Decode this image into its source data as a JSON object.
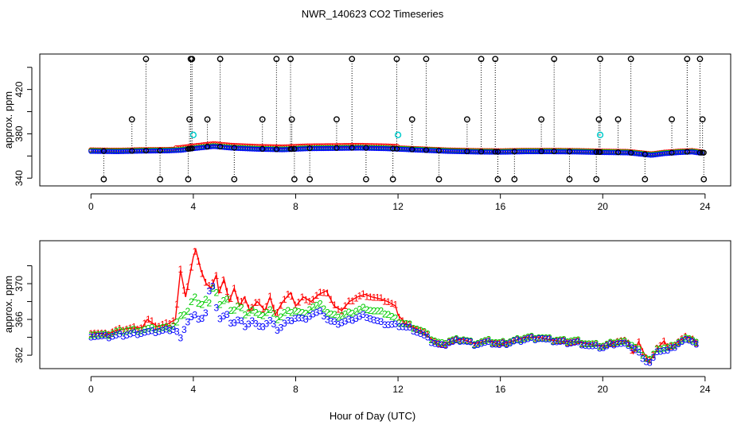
{
  "title": "NWR_140623  CO2 Timeseries",
  "xlabel": "Hour of Day (UTC)",
  "colors": {
    "series1": "#ff0000",
    "series2": "#00cc00",
    "series3": "#0000ff",
    "flag": "#000000",
    "cyan": "#00cccc"
  },
  "chart_data": [
    {
      "type": "scatter",
      "ylabel": "approx. ppm",
      "xlim": [
        -2,
        25
      ],
      "ylim": [
        333,
        452
      ],
      "xticks": [
        "0",
        "4",
        "8",
        "12",
        "16",
        "20",
        "24"
      ],
      "yticks": [
        "340",
        "380",
        "420"
      ],
      "baseline": [
        [
          0.0,
          364.6
        ],
        [
          1.0,
          364.3
        ],
        [
          2.0,
          364.8
        ],
        [
          3.0,
          365.0
        ],
        [
          3.5,
          365.5
        ],
        [
          4.0,
          367.0
        ],
        [
          4.8,
          369.0
        ],
        [
          5.5,
          367.5
        ],
        [
          6.5,
          366.5
        ],
        [
          7.5,
          366.0
        ],
        [
          8.5,
          367.0
        ],
        [
          9.5,
          367.2
        ],
        [
          10.5,
          367.5
        ],
        [
          11.5,
          367.0
        ],
        [
          12.0,
          366.5
        ],
        [
          13.0,
          365.5
        ],
        [
          14.0,
          364.5
        ],
        [
          15.0,
          364.0
        ],
        [
          16.0,
          363.8
        ],
        [
          17.0,
          364.2
        ],
        [
          18.0,
          364.2
        ],
        [
          19.0,
          364.0
        ],
        [
          20.0,
          363.5
        ],
        [
          21.0,
          363.2
        ],
        [
          21.5,
          362.0
        ],
        [
          21.9,
          361.0
        ],
        [
          22.4,
          362.5
        ],
        [
          23.0,
          363.5
        ],
        [
          23.5,
          364.0
        ],
        [
          23.8,
          363.0
        ]
      ],
      "flag_high": [
        2.15,
        3.9,
        3.95,
        5.05,
        7.25,
        7.8,
        10.2,
        11.95,
        13.1,
        15.25,
        15.8,
        18.1,
        19.9,
        21.1,
        23.3,
        23.8
      ],
      "flag_mid": [
        1.6,
        3.85,
        4.55,
        6.7,
        7.85,
        9.6,
        12.55,
        14.7,
        17.6,
        19.85,
        20.6,
        22.7,
        23.9
      ],
      "flag_low": [
        0.5,
        2.7,
        3.8,
        5.6,
        7.95,
        8.55,
        10.75,
        11.8,
        13.6,
        15.9,
        16.55,
        18.7,
        19.75,
        21.65,
        23.95
      ],
      "cyan_points": [
        [
          4.0,
          379
        ],
        [
          12.0,
          379
        ],
        [
          19.9,
          379
        ]
      ]
    },
    {
      "type": "line",
      "ylabel": "approx. ppm",
      "xlim": [
        -2,
        25
      ],
      "ylim": [
        360.5,
        374.8
      ],
      "xticks": [
        "0",
        "4",
        "8",
        "12",
        "16",
        "20",
        "24"
      ],
      "yticks": [
        "362",
        "366",
        "370"
      ],
      "markers": [
        "1",
        "2",
        "3"
      ],
      "series": [
        {
          "name": "1",
          "points": [
            [
              0.0,
              364.6
            ],
            [
              0.6,
              364.3
            ],
            [
              1.0,
              364.8
            ],
            [
              1.5,
              365.0
            ],
            [
              2.0,
              365.1
            ],
            [
              2.2,
              366.0
            ],
            [
              2.6,
              365.2
            ],
            [
              3.0,
              365.5
            ],
            [
              3.3,
              366.0
            ],
            [
              3.5,
              371.5
            ],
            [
              3.7,
              368.5
            ],
            [
              4.0,
              373.0
            ],
            [
              4.1,
              373.8
            ],
            [
              4.3,
              371.5
            ],
            [
              4.5,
              370.0
            ],
            [
              4.7,
              369.5
            ],
            [
              4.9,
              371.0
            ],
            [
              5.0,
              369.0
            ],
            [
              5.2,
              370.5
            ],
            [
              5.4,
              368.0
            ],
            [
              5.6,
              369.5
            ],
            [
              5.8,
              367.5
            ],
            [
              6.0,
              368.5
            ],
            [
              6.2,
              367.0
            ],
            [
              6.5,
              368.0
            ],
            [
              6.8,
              367.0
            ],
            [
              7.0,
              368.5
            ],
            [
              7.2,
              366.5
            ],
            [
              7.5,
              368.0
            ],
            [
              7.8,
              369.0
            ],
            [
              8.0,
              367.5
            ],
            [
              8.3,
              368.5
            ],
            [
              8.6,
              368.0
            ],
            [
              8.9,
              368.8
            ],
            [
              9.2,
              369.2
            ],
            [
              9.5,
              367.5
            ],
            [
              9.8,
              367.0
            ],
            [
              10.1,
              368.0
            ],
            [
              10.4,
              368.5
            ],
            [
              10.7,
              368.8
            ],
            [
              11.0,
              368.5
            ],
            [
              11.3,
              368.3
            ],
            [
              11.6,
              368.0
            ],
            [
              11.9,
              367.5
            ],
            [
              12.0,
              366.5
            ],
            [
              12.3,
              365.5
            ],
            [
              12.7,
              365.0
            ],
            [
              13.0,
              364.5
            ],
            [
              13.3,
              363.8
            ],
            [
              13.7,
              363.0
            ],
            [
              14.0,
              363.5
            ],
            [
              14.5,
              363.8
            ],
            [
              15.0,
              363.3
            ],
            [
              15.5,
              363.6
            ],
            [
              16.0,
              363.2
            ],
            [
              16.5,
              363.6
            ],
            [
              17.0,
              364.0
            ],
            [
              17.5,
              364.0
            ],
            [
              18.0,
              363.7
            ],
            [
              18.5,
              363.5
            ],
            [
              19.0,
              363.5
            ],
            [
              19.5,
              363.2
            ],
            [
              20.0,
              363.0
            ],
            [
              20.3,
              363.2
            ],
            [
              20.6,
              363.6
            ],
            [
              21.0,
              363.5
            ],
            [
              21.2,
              362.2
            ],
            [
              21.4,
              363.5
            ],
            [
              21.6,
              362.3
            ],
            [
              21.8,
              361.3
            ],
            [
              22.0,
              362.0
            ],
            [
              22.2,
              363.0
            ],
            [
              22.4,
              363.6
            ],
            [
              22.6,
              362.6
            ],
            [
              22.8,
              363.2
            ],
            [
              23.0,
              363.6
            ],
            [
              23.2,
              364.0
            ],
            [
              23.5,
              363.9
            ],
            [
              23.7,
              363.2
            ]
          ]
        },
        {
          "name": "2",
          "points": [
            [
              0.0,
              364.4
            ],
            [
              0.6,
              364.2
            ],
            [
              1.0,
              364.6
            ],
            [
              1.5,
              364.8
            ],
            [
              2.0,
              364.8
            ],
            [
              2.6,
              365.0
            ],
            [
              3.0,
              365.0
            ],
            [
              3.3,
              365.4
            ],
            [
              3.5,
              366.3
            ],
            [
              3.8,
              367.0
            ],
            [
              4.0,
              368.6
            ],
            [
              4.3,
              367.6
            ],
            [
              4.5,
              368.3
            ],
            [
              4.7,
              367.4
            ],
            [
              4.8,
              370.6
            ],
            [
              5.0,
              367.6
            ],
            [
              5.3,
              368.3
            ],
            [
              5.5,
              366.8
            ],
            [
              5.8,
              367.6
            ],
            [
              6.0,
              366.6
            ],
            [
              6.3,
              367.0
            ],
            [
              6.6,
              366.3
            ],
            [
              7.0,
              367.0
            ],
            [
              7.3,
              366.0
            ],
            [
              7.6,
              366.8
            ],
            [
              8.0,
              367.0
            ],
            [
              8.3,
              366.6
            ],
            [
              8.6,
              367.3
            ],
            [
              9.0,
              367.6
            ],
            [
              9.3,
              366.6
            ],
            [
              9.6,
              366.3
            ],
            [
              10.0,
              366.6
            ],
            [
              10.4,
              367.0
            ],
            [
              10.7,
              367.3
            ],
            [
              11.0,
              367.0
            ],
            [
              11.3,
              366.8
            ],
            [
              11.6,
              366.6
            ],
            [
              12.0,
              365.8
            ],
            [
              12.5,
              365.3
            ],
            [
              13.0,
              364.6
            ],
            [
              13.3,
              363.8
            ],
            [
              13.7,
              363.2
            ],
            [
              14.0,
              363.6
            ],
            [
              14.5,
              363.8
            ],
            [
              15.0,
              363.3
            ],
            [
              15.5,
              363.6
            ],
            [
              16.0,
              363.3
            ],
            [
              16.5,
              363.6
            ],
            [
              17.0,
              364.0
            ],
            [
              17.5,
              364.0
            ],
            [
              18.0,
              363.7
            ],
            [
              18.5,
              363.6
            ],
            [
              19.0,
              363.6
            ],
            [
              19.5,
              363.2
            ],
            [
              20.0,
              363.0
            ],
            [
              20.5,
              363.5
            ],
            [
              21.0,
              363.4
            ],
            [
              21.4,
              362.6
            ],
            [
              21.8,
              361.4
            ],
            [
              22.2,
              362.8
            ],
            [
              22.6,
              362.8
            ],
            [
              23.0,
              363.5
            ],
            [
              23.4,
              364.0
            ],
            [
              23.7,
              363.3
            ]
          ]
        },
        {
          "name": "3",
          "points": [
            [
              0.0,
              364.2
            ],
            [
              0.6,
              364.0
            ],
            [
              1.0,
              364.2
            ],
            [
              1.5,
              364.3
            ],
            [
              2.0,
              364.5
            ],
            [
              2.6,
              364.6
            ],
            [
              3.0,
              364.8
            ],
            [
              3.3,
              364.9
            ],
            [
              3.5,
              363.8
            ],
            [
              3.7,
              365.5
            ],
            [
              4.0,
              366.5
            ],
            [
              4.3,
              366.0
            ],
            [
              4.5,
              366.8
            ],
            [
              4.7,
              370.6
            ],
            [
              4.8,
              368.8
            ],
            [
              5.0,
              366.0
            ],
            [
              5.3,
              366.5
            ],
            [
              5.5,
              365.5
            ],
            [
              5.8,
              366.0
            ],
            [
              6.0,
              365.3
            ],
            [
              6.3,
              365.8
            ],
            [
              6.6,
              365.0
            ],
            [
              7.0,
              365.8
            ],
            [
              7.3,
              364.8
            ],
            [
              7.6,
              365.6
            ],
            [
              8.0,
              366.2
            ],
            [
              8.3,
              366.0
            ],
            [
              8.6,
              366.5
            ],
            [
              9.0,
              366.8
            ],
            [
              9.3,
              365.8
            ],
            [
              9.6,
              365.5
            ],
            [
              10.0,
              365.8
            ],
            [
              10.4,
              366.2
            ],
            [
              10.7,
              366.5
            ],
            [
              11.0,
              366.0
            ],
            [
              11.3,
              365.6
            ],
            [
              11.6,
              365.4
            ],
            [
              12.0,
              365.3
            ],
            [
              12.5,
              365.0
            ],
            [
              13.0,
              364.2
            ],
            [
              13.3,
              363.5
            ],
            [
              13.7,
              363.0
            ],
            [
              14.0,
              363.4
            ],
            [
              14.5,
              363.7
            ],
            [
              15.0,
              363.2
            ],
            [
              15.5,
              363.4
            ],
            [
              16.0,
              363.1
            ],
            [
              16.5,
              363.5
            ],
            [
              17.0,
              363.8
            ],
            [
              17.5,
              363.9
            ],
            [
              18.0,
              363.6
            ],
            [
              18.5,
              363.4
            ],
            [
              19.0,
              363.4
            ],
            [
              19.5,
              363.0
            ],
            [
              20.0,
              362.8
            ],
            [
              20.5,
              363.3
            ],
            [
              21.0,
              363.2
            ],
            [
              21.4,
              362.3
            ],
            [
              21.8,
              361.0
            ],
            [
              22.2,
              362.5
            ],
            [
              22.6,
              362.5
            ],
            [
              23.0,
              363.4
            ],
            [
              23.4,
              363.8
            ],
            [
              23.7,
              363.1
            ]
          ]
        }
      ]
    }
  ]
}
